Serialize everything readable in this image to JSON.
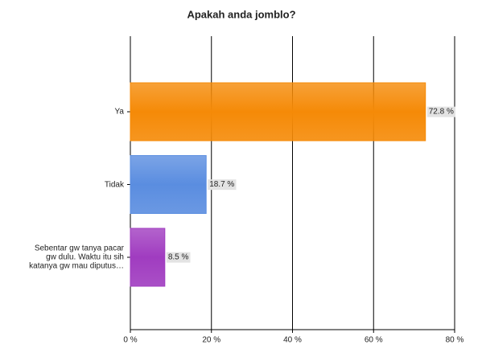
{
  "chart_data": {
    "type": "bar",
    "orientation": "horizontal",
    "title": "Apakah anda jomblo?",
    "categories": [
      "Ya",
      "Tidak",
      "Sebentar gw tanya pacar gw dulu. Waktu itu sih katanya gw mau diputus…"
    ],
    "values": [
      72.8,
      18.7,
      8.5
    ],
    "value_labels": [
      "72.8 %",
      "18.7 %",
      "8.5 %"
    ],
    "colors": [
      "#f58a07",
      "#5a8de0",
      "#a03cc0"
    ],
    "xlim": [
      0,
      80
    ],
    "xticks": [
      {
        "value": 0,
        "label": "0 %"
      },
      {
        "value": 20,
        "label": "20 %"
      },
      {
        "value": 40,
        "label": "40 %"
      },
      {
        "value": 60,
        "label": "60 %"
      },
      {
        "value": 80,
        "label": "80 %"
      }
    ],
    "grid": true
  }
}
